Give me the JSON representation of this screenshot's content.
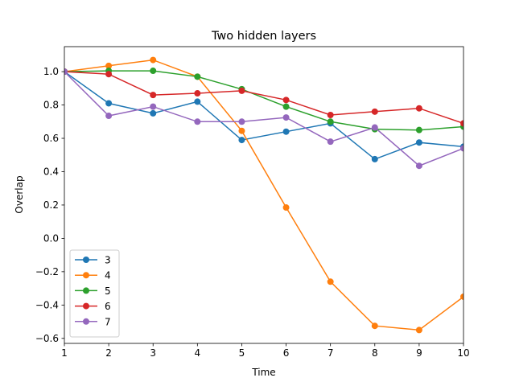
{
  "chart_data": {
    "type": "line",
    "title": "Two hidden layers",
    "xlabel": "Time",
    "ylabel": "Overlap",
    "x": [
      1,
      2,
      3,
      4,
      5,
      6,
      7,
      8,
      9,
      10
    ],
    "xlim": [
      1,
      10
    ],
    "ylim": [
      -0.63,
      1.15
    ],
    "xticks": [
      1,
      2,
      3,
      4,
      5,
      6,
      7,
      8,
      9,
      10
    ],
    "yticks": [
      -0.6,
      -0.4,
      -0.2,
      0.0,
      0.2,
      0.4,
      0.6,
      0.8,
      1.0
    ],
    "ytick_labels": [
      "−0.6",
      "−0.4",
      "−0.2",
      "0.0",
      "0.2",
      "0.4",
      "0.6",
      "0.8",
      "1.0"
    ],
    "grid": false,
    "legend_position": "lower-left",
    "series": [
      {
        "name": "3",
        "color": "#1f77b4",
        "values": [
          1.0,
          0.81,
          0.75,
          0.82,
          0.59,
          0.64,
          0.69,
          0.475,
          0.575,
          0.55
        ]
      },
      {
        "name": "4",
        "color": "#ff7f0e",
        "values": [
          1.0,
          1.035,
          1.07,
          0.97,
          0.645,
          0.185,
          -0.26,
          -0.525,
          -0.55,
          -0.35
        ]
      },
      {
        "name": "5",
        "color": "#2ca02c",
        "values": [
          1.0,
          1.005,
          1.005,
          0.97,
          0.895,
          0.79,
          0.7,
          0.655,
          0.65,
          0.67
        ]
      },
      {
        "name": "6",
        "color": "#d62728",
        "values": [
          1.0,
          0.985,
          0.86,
          0.87,
          0.885,
          0.83,
          0.74,
          0.76,
          0.78,
          0.69
        ]
      },
      {
        "name": "7",
        "color": "#9467bd",
        "values": [
          1.0,
          0.735,
          0.79,
          0.7,
          0.7,
          0.725,
          0.58,
          0.665,
          0.435,
          0.54
        ]
      }
    ]
  }
}
